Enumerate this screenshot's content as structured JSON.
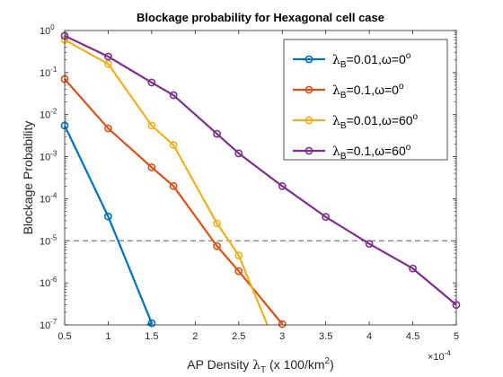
{
  "chart_data": {
    "type": "line",
    "title": "Blockage probability for Hexagonal cell case",
    "xlabel": {
      "pre": "AP Density ",
      "lambda": "λ",
      "sub": "T",
      "post1": " (x 100/km",
      "sup": "2",
      "post2": ")"
    },
    "ylabel": "Blockage Probability",
    "x_exponent": {
      "base": "×10",
      "exp": "-4"
    },
    "xlim": [
      0.5,
      5
    ],
    "ylim_log10": [
      -7,
      0
    ],
    "yscale": "log",
    "grid": false,
    "legend_position": "top-right",
    "x_ticks": [
      "0.5",
      "1",
      "1.5",
      "2",
      "2.5",
      "3",
      "3.5",
      "4",
      "4.5",
      "5"
    ],
    "y_ticks": [
      {
        "base": "10",
        "exp": "-7"
      },
      {
        "base": "10",
        "exp": "-6"
      },
      {
        "base": "10",
        "exp": "-5"
      },
      {
        "base": "10",
        "exp": "-4"
      },
      {
        "base": "10",
        "exp": "-3"
      },
      {
        "base": "10",
        "exp": "-2"
      },
      {
        "base": "10",
        "exp": "-1"
      },
      {
        "base": "10",
        "exp": "0"
      }
    ],
    "reference_line": {
      "y": 1e-05,
      "color": "#7f7f7f"
    },
    "series": [
      {
        "legend": {
          "lambda": "λ",
          "sub": "B",
          "text": "=0.01,ω=0",
          "sup": "o"
        },
        "color": "#0072bd",
        "x": [
          0.5,
          1.0,
          1.5
        ],
        "y": [
          0.0055,
          3.8e-05,
          1.1e-07
        ],
        "tail": {
          "x": 1.45,
          "y": 1e-07
        }
      },
      {
        "legend": {
          "lambda": "λ",
          "sub": "B",
          "text": "=0.1,ω=0",
          "sup": "o"
        },
        "color": "#d95319",
        "x": [
          0.5,
          1.0,
          1.5,
          1.75,
          2.25,
          2.5,
          3.0
        ],
        "y": [
          0.07,
          0.0047,
          0.00056,
          0.0002,
          7.5e-06,
          1.9e-06,
          1.05e-07
        ],
        "tail": null
      },
      {
        "legend": {
          "lambda": "λ",
          "sub": "B",
          "text": "=0.01,ω=60",
          "sup": "o"
        },
        "color": "#edb120",
        "x": [
          0.5,
          1.0,
          1.5,
          1.75,
          2.25,
          2.5
        ],
        "y": [
          0.6,
          0.16,
          0.0055,
          0.0019,
          2.6e-05,
          4.5e-06
        ],
        "tail": {
          "x": 2.83,
          "y": 1e-07
        }
      },
      {
        "legend": {
          "lambda": "λ",
          "sub": "B",
          "text": "=0.1,ω=60",
          "sup": "o"
        },
        "color": "#7e2f8e",
        "x": [
          0.5,
          1.0,
          1.5,
          1.75,
          2.25,
          2.5,
          3.0,
          3.5,
          4.0,
          4.5,
          5.0
        ],
        "y": [
          0.75,
          0.24,
          0.058,
          0.029,
          0.0035,
          0.0012,
          0.0002,
          3.7e-05,
          8.5e-06,
          2.2e-06,
          3e-07
        ],
        "tail": null
      }
    ]
  }
}
